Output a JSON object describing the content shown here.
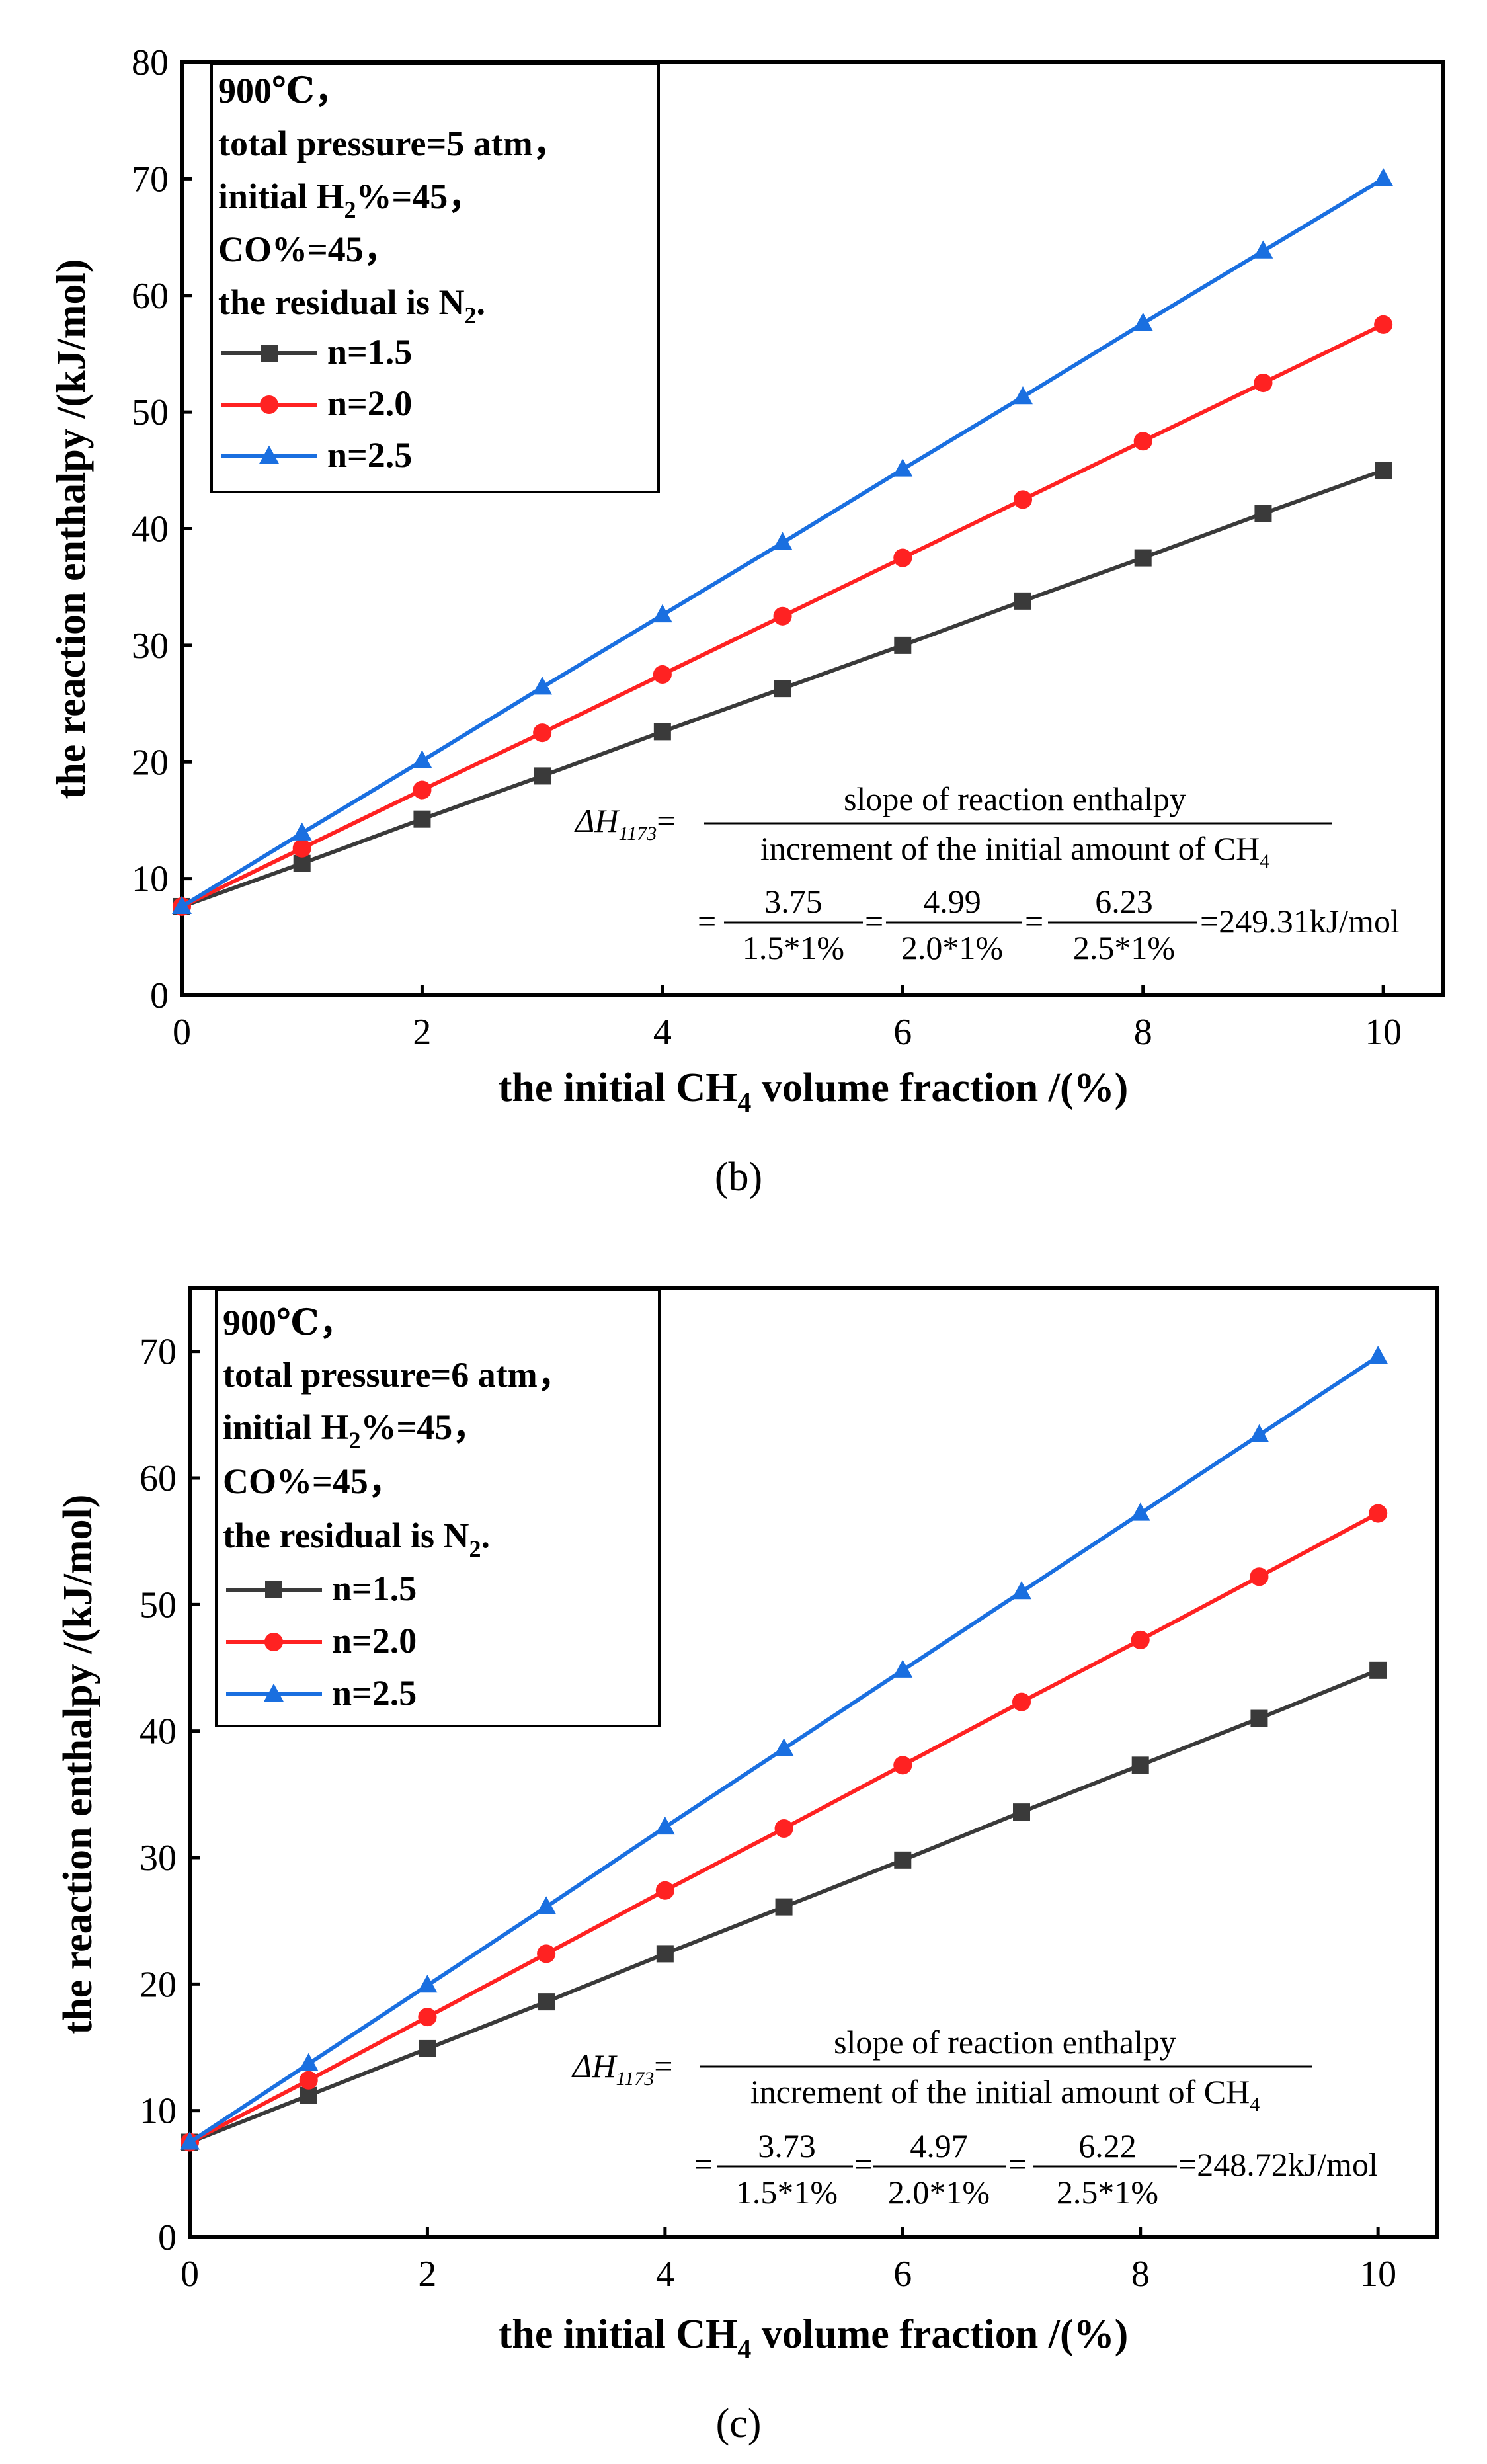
{
  "chart_data": [
    {
      "panel_label": "(b)",
      "type": "line",
      "title": "",
      "xlabel_pre": "the initial CH",
      "xlabel_sub": "4",
      "xlabel_post": " volume fraction /(%)",
      "ylabel": "the reaction enthalpy /(kJ/mol)",
      "xlim": [
        0,
        10.5
      ],
      "ylim": [
        0,
        80
      ],
      "xticks": [
        "0",
        "2",
        "4",
        "6",
        "8",
        "10"
      ],
      "yticks": [
        "0",
        "10",
        "20",
        "30",
        "40",
        "50",
        "60",
        "70",
        "80"
      ],
      "grid": false,
      "legend_position": "top-left",
      "conditions": {
        "line1": "900℃，",
        "line2": "total pressure=5 atm，",
        "line3_pre": "initial H",
        "line3_sub": "2",
        "line3_post": "%=45，",
        "line4": "CO%=45，",
        "line5_pre": "the residual is N",
        "line5_sub": "2",
        "line5_post": "."
      },
      "x": [
        0,
        1,
        2,
        3,
        4,
        5,
        6,
        7,
        8,
        9,
        10
      ],
      "series": [
        {
          "name": "n=1.5",
          "color": "#3a3a3a",
          "marker": "square",
          "values": [
            7.6,
            11.3,
            15.1,
            18.8,
            22.6,
            26.3,
            30.0,
            33.8,
            37.5,
            41.3,
            45.0
          ]
        },
        {
          "name": "n=2.0",
          "color": "#ff2222",
          "marker": "circle",
          "values": [
            7.6,
            12.6,
            17.6,
            22.5,
            27.5,
            32.5,
            37.5,
            42.5,
            47.5,
            52.5,
            57.5
          ]
        },
        {
          "name": "n=2.5",
          "color": "#1a6fe0",
          "marker": "triangle",
          "values": [
            7.6,
            13.9,
            20.1,
            26.4,
            32.6,
            38.8,
            45.1,
            51.3,
            57.6,
            63.8,
            70.0
          ]
        }
      ],
      "formula": {
        "lhs": "ΔH",
        "lhs_sub": "1173",
        "eq1": "=",
        "numerator": "slope of reaction enthalpy",
        "denominator_pre": "increment of the initial amount of CH",
        "denominator_sub": "4",
        "eq2": "=",
        "fracs": [
          {
            "num": "3.75",
            "den": "1.5*1%"
          },
          {
            "num": "4.99",
            "den": "2.0*1%"
          },
          {
            "num": "6.23",
            "den": "2.5*1%"
          }
        ],
        "seps": [
          "=",
          "="
        ],
        "result": "=249.31kJ/mol"
      }
    },
    {
      "panel_label": "(c)",
      "type": "line",
      "title": "",
      "xlabel_pre": "the initial CH",
      "xlabel_sub": "4",
      "xlabel_post": " volume fraction /(%)",
      "ylabel": "the reaction enthalpy /(kJ/mol)",
      "xlim": [
        0,
        10.5
      ],
      "ylim": [
        0,
        75
      ],
      "xticks": [
        "0",
        "2",
        "4",
        "6",
        "8",
        "10"
      ],
      "yticks": [
        "0",
        "10",
        "20",
        "30",
        "40",
        "50",
        "60",
        "70"
      ],
      "grid": false,
      "legend_position": "top-left",
      "conditions": {
        "line1": "900℃，",
        "line2": "total pressure=6 atm，",
        "line3_pre": "initial H",
        "line3_sub": "2",
        "line3_post": "%=45，",
        "line4": "CO%=45，",
        "line5_pre": "the residual is N",
        "line5_sub": "2",
        "line5_post": "."
      },
      "x": [
        0,
        1,
        2,
        3,
        4,
        5,
        6,
        7,
        8,
        9,
        10
      ],
      "series": [
        {
          "name": "n=1.5",
          "color": "#3a3a3a",
          "marker": "square",
          "values": [
            7.5,
            11.2,
            14.9,
            18.6,
            22.4,
            26.1,
            29.8,
            33.6,
            37.3,
            41.0,
            44.8
          ]
        },
        {
          "name": "n=2.0",
          "color": "#ff2222",
          "marker": "circle",
          "values": [
            7.5,
            12.4,
            17.4,
            22.4,
            27.4,
            32.3,
            37.3,
            42.3,
            47.2,
            52.2,
            57.2
          ]
        },
        {
          "name": "n=2.5",
          "color": "#1a6fe0",
          "marker": "triangle",
          "values": [
            7.5,
            13.7,
            19.9,
            26.1,
            32.4,
            38.6,
            44.8,
            51.0,
            57.2,
            63.4,
            69.6
          ]
        }
      ],
      "formula": {
        "lhs": "ΔH",
        "lhs_sub": "1173",
        "eq1": "=",
        "numerator": "slope of  reaction enthalpy",
        "denominator_pre": "increment of the initial amount of CH",
        "denominator_sub": "4",
        "eq2": "=",
        "fracs": [
          {
            "num": "3.73",
            "den": "1.5*1%"
          },
          {
            "num": "4.97",
            "den": "2.0*1%"
          },
          {
            "num": "6.22",
            "den": "2.5*1%"
          }
        ],
        "seps": [
          "=",
          "="
        ],
        "result": "=248.72kJ/mol"
      }
    }
  ]
}
